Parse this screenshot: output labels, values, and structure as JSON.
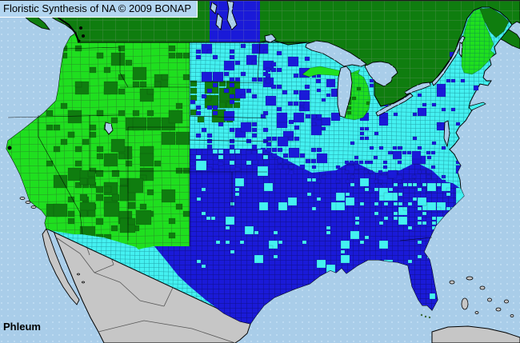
{
  "window": {
    "title_bar_text": "Floristic Synthesis of NA © 2009 BONAP"
  },
  "map": {
    "taxon_label": "Phleum",
    "kind": "county-level distribution map of North America",
    "palette": {
      "ocean": "#A9CDE9",
      "ocean_dot": "#C2DEF4",
      "titlebar_bg": "#B3D6F1",
      "dark_green": "#0F7D0F",
      "bright_green": "#1FDF1F",
      "cyan": "#44F1F1",
      "blue": "#1A1AD8",
      "gray_land": "#C6C6C6",
      "outline_black": "#000000",
      "label_color": "#000000"
    },
    "color_regions": [
      {
        "color_key": "dark_green",
        "where": "Canada, northern Maine, scattered western counties"
      },
      {
        "color_key": "bright_green",
        "where": "western United States, Michigan, Vermont / New Hampshire / western Maine"
      },
      {
        "color_key": "cyan",
        "where": "upper Midwest and Northeast counties, scattered southern counties"
      },
      {
        "color_key": "blue",
        "where": "southern United States, Manitoba, scattered midwestern counties"
      },
      {
        "color_key": "gray_land",
        "where": "Mexico, Bahamas, Cuba"
      },
      {
        "color_key": "ocean",
        "where": "ocean and Great Lakes"
      }
    ]
  }
}
